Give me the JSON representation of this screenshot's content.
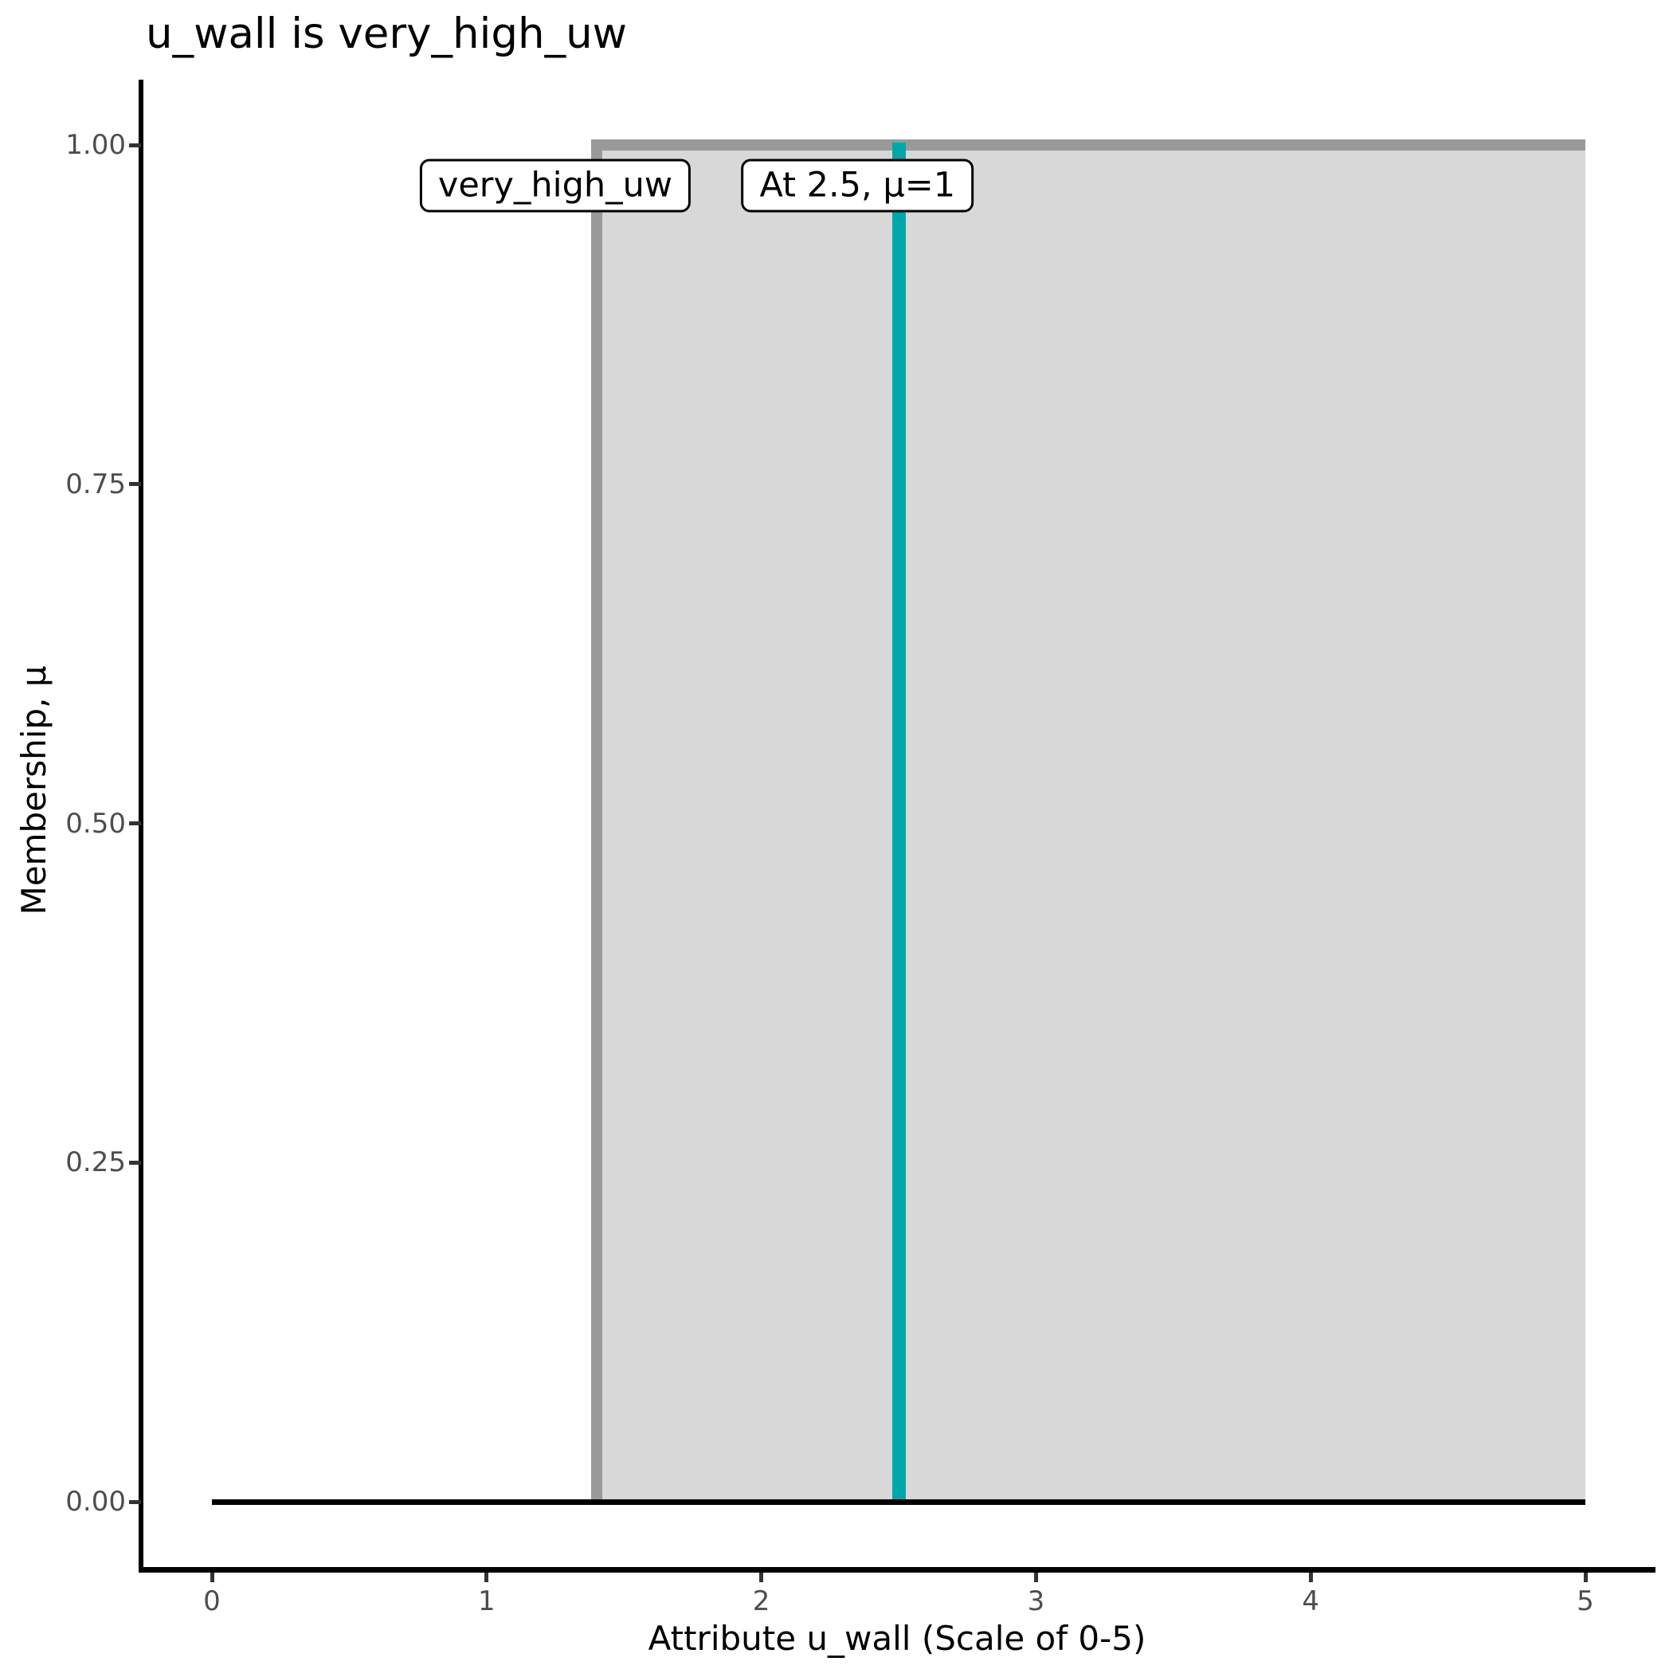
{
  "title": "u_wall is very_high_uw",
  "x_axis": {
    "title": "Attribute u_wall (Scale of 0-5)",
    "tick_labels": [
      "0",
      "1",
      "2",
      "3",
      "4",
      "5"
    ],
    "tick_values": [
      0,
      1,
      2,
      3,
      4,
      5
    ]
  },
  "y_axis": {
    "title": "Membership, μ",
    "tick_labels": [
      "1.00",
      "0.75",
      "0.50",
      "0.25",
      "0.00"
    ],
    "tick_values": [
      1.0,
      0.75,
      0.5,
      0.25,
      0.0
    ]
  },
  "annotations": {
    "set_label": "very_high_uw",
    "point_label": "At 2.5, μ=1"
  },
  "colors": {
    "membership_fill": "#D8D8D8",
    "membership_border": "#999999",
    "marker_line": "#00A7AA",
    "zero_baseline": "#000000",
    "axis_line": "#000000",
    "tick_mark": "#333333",
    "tick_text": "#4D4D4D",
    "title_text": "#000000"
  },
  "chart_data": {
    "type": "area",
    "title": "u_wall is very_high_uw",
    "xlabel": "Attribute u_wall (Scale of 0-5)",
    "ylabel": "Membership, μ",
    "xlim": [
      0,
      5
    ],
    "ylim": [
      0,
      1
    ],
    "grid": false,
    "legend_position": "none",
    "series": [
      {
        "name": "very_high_uw",
        "points_x": [
          0,
          1.4,
          1.4,
          5
        ],
        "points_y": [
          0,
          0,
          1,
          1
        ],
        "fill": "#D8D8D8",
        "stroke": "#999999"
      }
    ],
    "marker": {
      "x": 2.5,
      "mu": 1,
      "label": "At 2.5, μ=1",
      "color": "#00A7AA"
    },
    "label_boxes": [
      {
        "text": "very_high_uw",
        "x": 1.25,
        "mu": 0.97
      },
      {
        "text": "At 2.5, μ=1",
        "x": 2.35,
        "mu": 0.97
      }
    ]
  }
}
